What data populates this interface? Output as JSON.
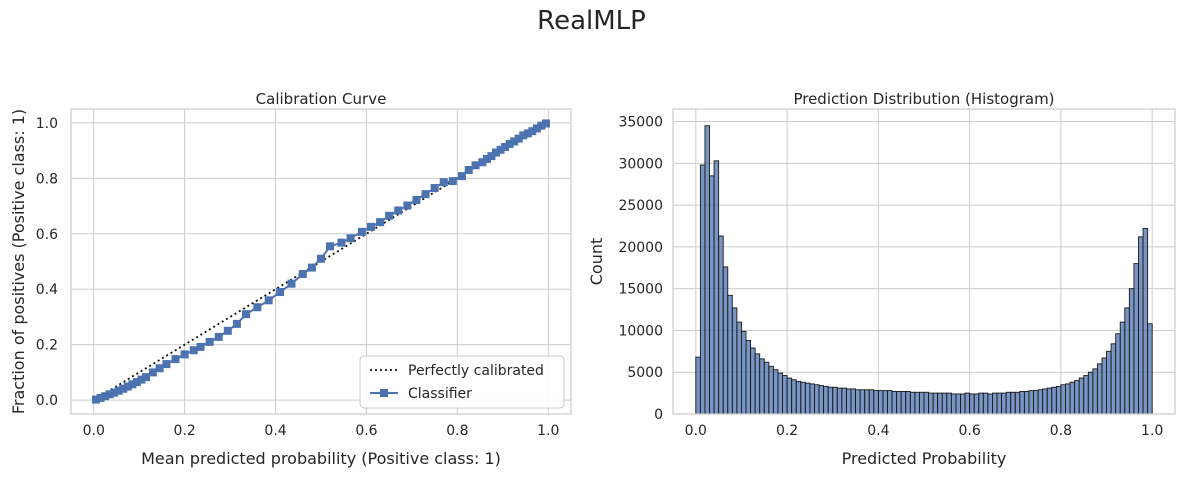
{
  "figure": {
    "title": "RealMLP"
  },
  "chart_data": [
    {
      "type": "line",
      "title": "Calibration Curve",
      "xlabel": "Mean predicted probability (Positive class: 1)",
      "ylabel": "Fraction of positives (Positive class: 1)",
      "xlim": [
        -0.05,
        1.05
      ],
      "ylim": [
        -0.05,
        1.05
      ],
      "xticks": [
        "0.0",
        "0.2",
        "0.4",
        "0.6",
        "0.8",
        "1.0"
      ],
      "yticks": [
        "0.0",
        "0.2",
        "0.4",
        "0.6",
        "0.8",
        "1.0"
      ],
      "grid": true,
      "legend": {
        "position": "lower-right",
        "entries": [
          "Perfectly calibrated",
          "Classifier"
        ]
      },
      "series": [
        {
          "name": "Perfectly calibrated",
          "style": "dotted",
          "color": "#000000",
          "x": [
            0,
            1
          ],
          "y": [
            0,
            1
          ]
        },
        {
          "name": "Classifier",
          "style": "line-square",
          "color": "#4c72b0",
          "x": [
            0.005,
            0.015,
            0.025,
            0.035,
            0.045,
            0.055,
            0.065,
            0.075,
            0.085,
            0.095,
            0.105,
            0.115,
            0.13,
            0.145,
            0.16,
            0.18,
            0.2,
            0.22,
            0.235,
            0.255,
            0.275,
            0.295,
            0.315,
            0.335,
            0.36,
            0.385,
            0.41,
            0.435,
            0.46,
            0.48,
            0.5,
            0.52,
            0.545,
            0.565,
            0.59,
            0.61,
            0.63,
            0.65,
            0.67,
            0.69,
            0.71,
            0.73,
            0.75,
            0.77,
            0.79,
            0.81,
            0.825,
            0.84,
            0.855,
            0.865,
            0.875,
            0.885,
            0.895,
            0.905,
            0.915,
            0.925,
            0.935,
            0.945,
            0.955,
            0.965,
            0.975,
            0.985,
            0.995
          ],
          "y": [
            0.002,
            0.008,
            0.014,
            0.021,
            0.027,
            0.034,
            0.041,
            0.049,
            0.057,
            0.065,
            0.074,
            0.083,
            0.1,
            0.115,
            0.13,
            0.148,
            0.165,
            0.18,
            0.192,
            0.21,
            0.228,
            0.25,
            0.275,
            0.31,
            0.335,
            0.36,
            0.39,
            0.42,
            0.455,
            0.478,
            0.51,
            0.555,
            0.568,
            0.584,
            0.607,
            0.625,
            0.642,
            0.665,
            0.684,
            0.702,
            0.722,
            0.743,
            0.765,
            0.786,
            0.79,
            0.808,
            0.83,
            0.847,
            0.858,
            0.87,
            0.88,
            0.893,
            0.903,
            0.913,
            0.924,
            0.933,
            0.943,
            0.955,
            0.962,
            0.97,
            0.98,
            0.99,
            0.998
          ]
        }
      ]
    },
    {
      "type": "bar",
      "title": "Prediction Distribution (Histogram)",
      "xlabel": "Predicted Probability",
      "ylabel": "Count",
      "xlim": [
        -0.05,
        1.05
      ],
      "ylim": [
        0,
        36500
      ],
      "xticks": [
        "0.0",
        "0.2",
        "0.4",
        "0.6",
        "0.8",
        "1.0"
      ],
      "yticks": [
        "0",
        "5000",
        "10000",
        "15000",
        "20000",
        "25000",
        "30000",
        "35000"
      ],
      "grid": true,
      "bin_width": 0.01,
      "bin_start": 0.0,
      "color": "#4c72b0",
      "values": [
        6800,
        29800,
        34500,
        28500,
        30300,
        21300,
        17600,
        14200,
        12700,
        11000,
        9900,
        8800,
        7900,
        7200,
        6600,
        6200,
        5700,
        5300,
        4900,
        4600,
        4300,
        4100,
        3900,
        3800,
        3700,
        3600,
        3500,
        3400,
        3300,
        3200,
        3200,
        3100,
        3100,
        3000,
        3000,
        2900,
        2900,
        2900,
        2900,
        2800,
        2800,
        2800,
        2800,
        2700,
        2700,
        2700,
        2700,
        2600,
        2600,
        2600,
        2600,
        2500,
        2500,
        2500,
        2500,
        2500,
        2400,
        2400,
        2400,
        2500,
        2400,
        2400,
        2500,
        2500,
        2400,
        2500,
        2500,
        2500,
        2600,
        2600,
        2600,
        2700,
        2700,
        2800,
        2800,
        2900,
        3000,
        3100,
        3200,
        3300,
        3500,
        3600,
        3800,
        4000,
        4300,
        4600,
        5000,
        5400,
        6000,
        6700,
        7500,
        8400,
        9600,
        11000,
        12700,
        15000,
        18000,
        21200,
        22200,
        10800
      ]
    }
  ]
}
